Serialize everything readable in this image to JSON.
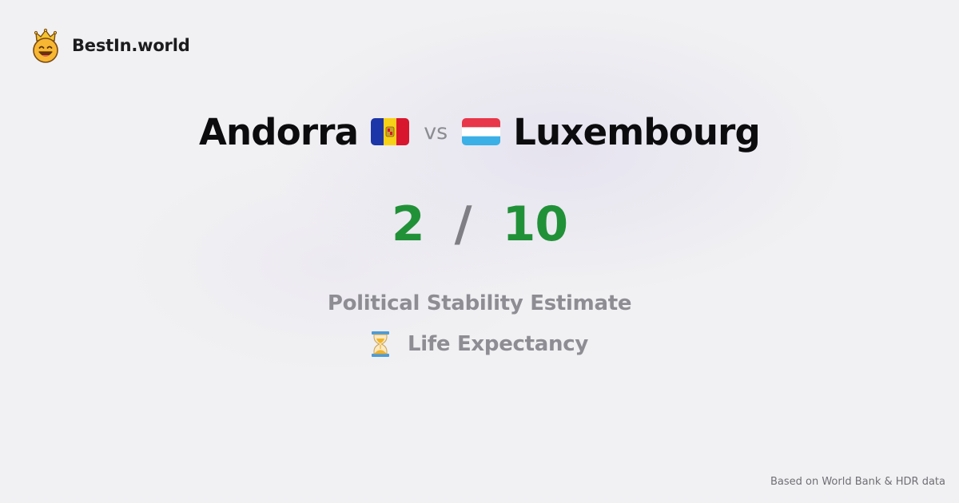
{
  "brand": {
    "name": "BestIn.world",
    "icon": "crowned-smiley-icon"
  },
  "comparison": {
    "left_country": "Andorra",
    "left_flag": "andorra-flag-icon",
    "vs_label": "vs",
    "right_country": "Luxembourg",
    "right_flag": "luxembourg-flag-icon"
  },
  "scores": {
    "left": "2",
    "separator": "/",
    "right": "10"
  },
  "metrics": {
    "primary": "Political Stability Estimate",
    "secondary": "Life Expectancy",
    "secondary_icon": "hourglass-icon"
  },
  "footer": {
    "source": "Based on World Bank & HDR data"
  },
  "colors": {
    "score": "#219138",
    "slash": "#7e7e84",
    "metric_text": "#8d8d93",
    "background": "#f1f1f3"
  }
}
